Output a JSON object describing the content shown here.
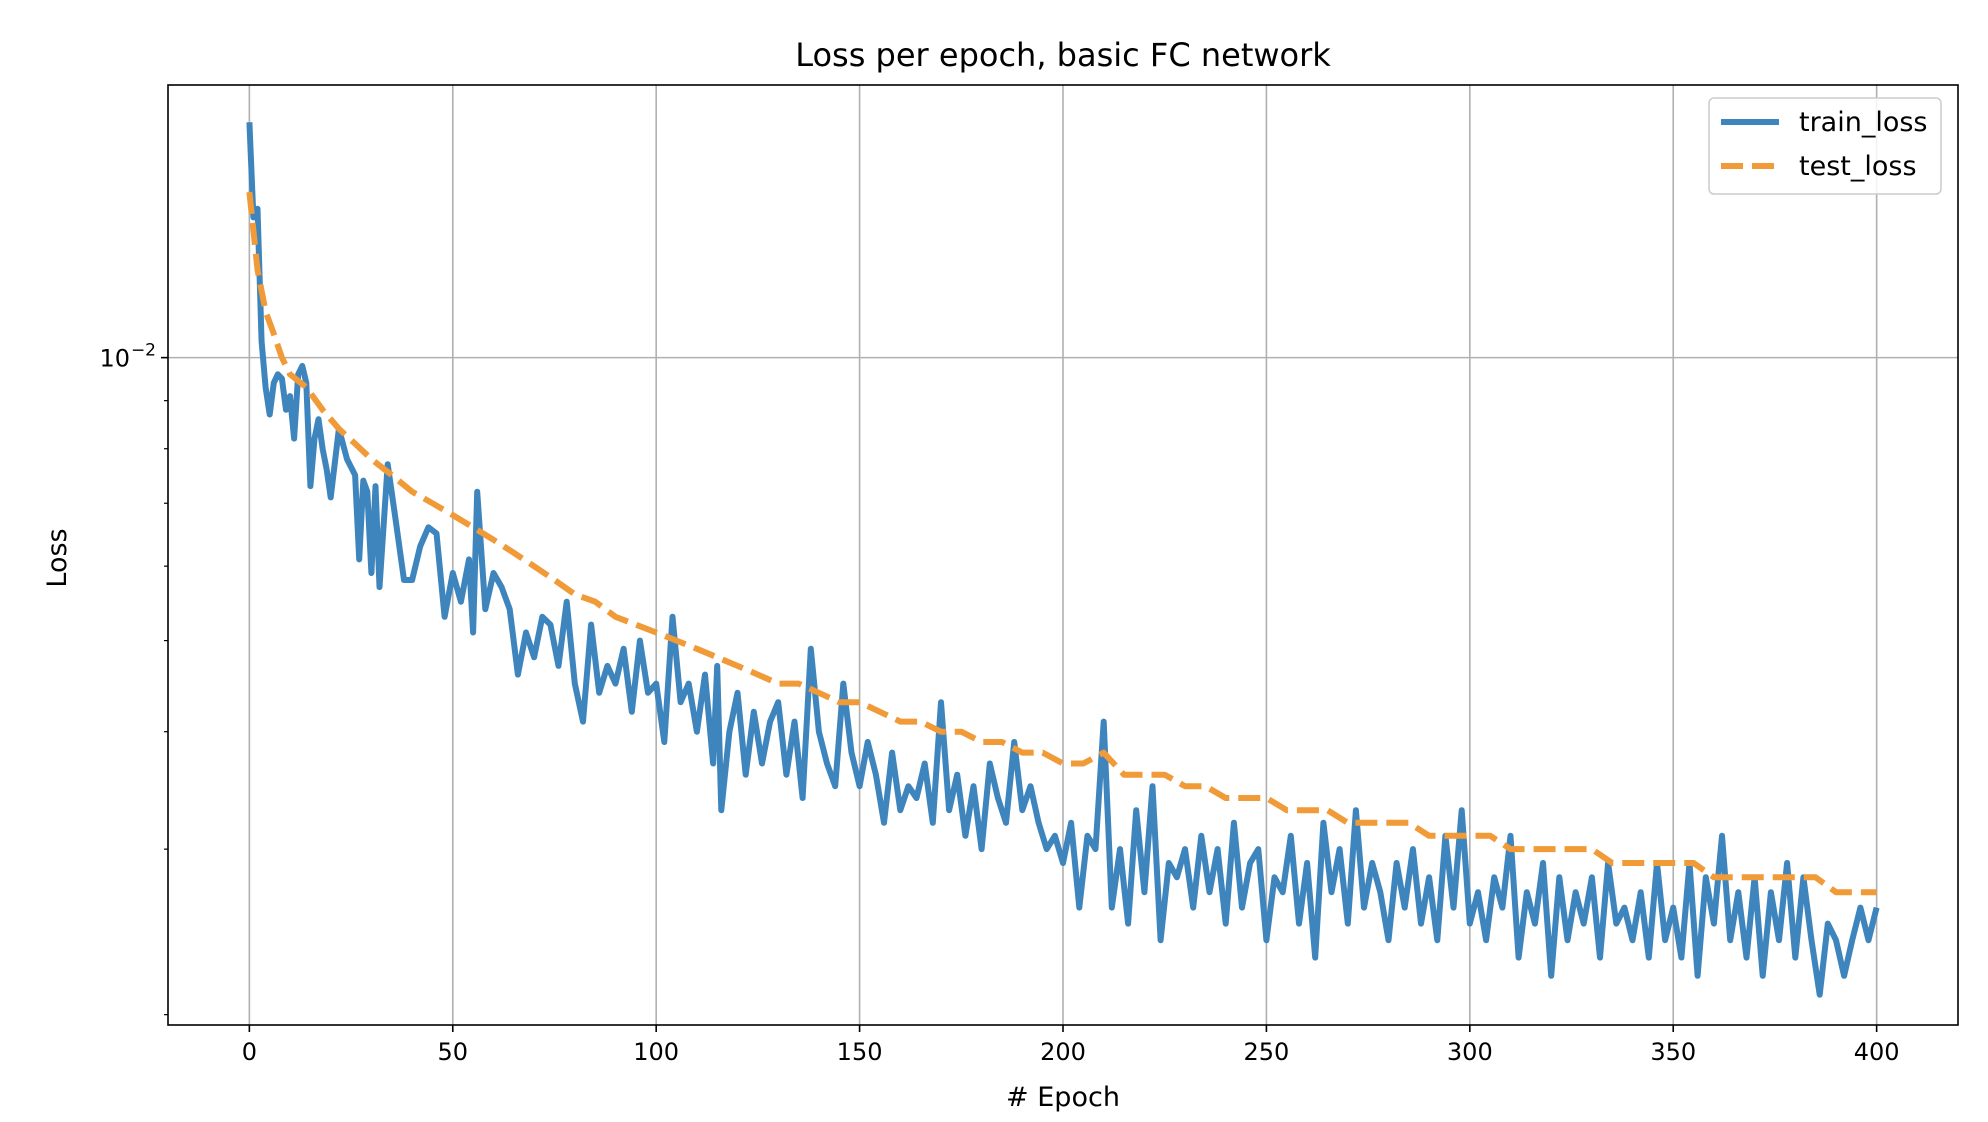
{
  "chart_data": {
    "type": "line",
    "title": "Loss per epoch, basic FC network",
    "xlabel": "# Epoch",
    "ylabel": "Loss",
    "x_scale": "linear",
    "y_scale": "log",
    "xlim": [
      -20,
      420
    ],
    "ylim": [
      0.00195,
      0.0195
    ],
    "xticks": [
      0,
      50,
      100,
      150,
      200,
      250,
      300,
      350,
      400
    ],
    "xtick_labels": [
      "0",
      "50",
      "100",
      "150",
      "200",
      "250",
      "300",
      "350",
      "400"
    ],
    "yticks": [
      0.01
    ],
    "ytick_labels": [
      "10",
      "−2"
    ],
    "grid": true,
    "legend_position": "upper right",
    "series": [
      {
        "name": "train_loss",
        "color": "#3f85bd",
        "style": "solid",
        "points": [
          [
            0,
            0.0178
          ],
          [
            1,
            0.0141
          ],
          [
            2,
            0.0144
          ],
          [
            3,
            0.0104
          ],
          [
            4,
            0.0093
          ],
          [
            5,
            0.0087
          ],
          [
            6,
            0.0094
          ],
          [
            7,
            0.0096
          ],
          [
            8,
            0.0095
          ],
          [
            9,
            0.0088
          ],
          [
            10,
            0.0091
          ],
          [
            11,
            0.0082
          ],
          [
            12,
            0.0096
          ],
          [
            13,
            0.0098
          ],
          [
            14,
            0.0094
          ],
          [
            15,
            0.0073
          ],
          [
            16,
            0.0082
          ],
          [
            17,
            0.0086
          ],
          [
            18,
            0.008
          ],
          [
            19,
            0.0076
          ],
          [
            20,
            0.0071
          ],
          [
            22,
            0.0084
          ],
          [
            24,
            0.0078
          ],
          [
            26,
            0.0075
          ],
          [
            27,
            0.0061
          ],
          [
            28,
            0.0074
          ],
          [
            29,
            0.0072
          ],
          [
            30,
            0.0059
          ],
          [
            31,
            0.0073
          ],
          [
            32,
            0.0057
          ],
          [
            34,
            0.0077
          ],
          [
            36,
            0.0067
          ],
          [
            38,
            0.0058
          ],
          [
            40,
            0.0058
          ],
          [
            42,
            0.0063
          ],
          [
            44,
            0.0066
          ],
          [
            46,
            0.0065
          ],
          [
            48,
            0.0053
          ],
          [
            50,
            0.0059
          ],
          [
            52,
            0.0055
          ],
          [
            54,
            0.0061
          ],
          [
            55,
            0.0051
          ],
          [
            56,
            0.0072
          ],
          [
            58,
            0.0054
          ],
          [
            60,
            0.0059
          ],
          [
            62,
            0.0057
          ],
          [
            64,
            0.0054
          ],
          [
            66,
            0.0046
          ],
          [
            68,
            0.0051
          ],
          [
            70,
            0.0048
          ],
          [
            72,
            0.0053
          ],
          [
            74,
            0.0052
          ],
          [
            76,
            0.0047
          ],
          [
            78,
            0.0055
          ],
          [
            80,
            0.0045
          ],
          [
            82,
            0.0041
          ],
          [
            84,
            0.0052
          ],
          [
            86,
            0.0044
          ],
          [
            88,
            0.0047
          ],
          [
            90,
            0.0045
          ],
          [
            92,
            0.0049
          ],
          [
            94,
            0.0042
          ],
          [
            96,
            0.005
          ],
          [
            98,
            0.0044
          ],
          [
            100,
            0.0045
          ],
          [
            102,
            0.0039
          ],
          [
            104,
            0.0053
          ],
          [
            106,
            0.0043
          ],
          [
            108,
            0.0045
          ],
          [
            110,
            0.004
          ],
          [
            112,
            0.0046
          ],
          [
            114,
            0.0037
          ],
          [
            115,
            0.0047
          ],
          [
            116,
            0.0033
          ],
          [
            118,
            0.004
          ],
          [
            120,
            0.0044
          ],
          [
            122,
            0.0036
          ],
          [
            124,
            0.0042
          ],
          [
            126,
            0.0037
          ],
          [
            128,
            0.0041
          ],
          [
            130,
            0.0043
          ],
          [
            132,
            0.0036
          ],
          [
            134,
            0.0041
          ],
          [
            136,
            0.0034
          ],
          [
            138,
            0.0049
          ],
          [
            140,
            0.004
          ],
          [
            142,
            0.0037
          ],
          [
            144,
            0.0035
          ],
          [
            146,
            0.0045
          ],
          [
            148,
            0.0038
          ],
          [
            150,
            0.0035
          ],
          [
            152,
            0.0039
          ],
          [
            154,
            0.0036
          ],
          [
            156,
            0.0032
          ],
          [
            158,
            0.0038
          ],
          [
            160,
            0.0033
          ],
          [
            162,
            0.0035
          ],
          [
            164,
            0.0034
          ],
          [
            166,
            0.0037
          ],
          [
            168,
            0.0032
          ],
          [
            170,
            0.0043
          ],
          [
            172,
            0.0033
          ],
          [
            174,
            0.0036
          ],
          [
            176,
            0.0031
          ],
          [
            178,
            0.0035
          ],
          [
            180,
            0.003
          ],
          [
            182,
            0.0037
          ],
          [
            184,
            0.0034
          ],
          [
            186,
            0.0032
          ],
          [
            188,
            0.0039
          ],
          [
            190,
            0.0033
          ],
          [
            192,
            0.0035
          ],
          [
            194,
            0.0032
          ],
          [
            196,
            0.003
          ],
          [
            198,
            0.0031
          ],
          [
            200,
            0.0029
          ],
          [
            202,
            0.0032
          ],
          [
            204,
            0.0026
          ],
          [
            206,
            0.0031
          ],
          [
            208,
            0.003
          ],
          [
            210,
            0.0041
          ],
          [
            212,
            0.0026
          ],
          [
            214,
            0.003
          ],
          [
            216,
            0.0025
          ],
          [
            218,
            0.0033
          ],
          [
            220,
            0.0027
          ],
          [
            222,
            0.0035
          ],
          [
            224,
            0.0024
          ],
          [
            226,
            0.0029
          ],
          [
            228,
            0.0028
          ],
          [
            230,
            0.003
          ],
          [
            232,
            0.0026
          ],
          [
            234,
            0.0031
          ],
          [
            236,
            0.0027
          ],
          [
            238,
            0.003
          ],
          [
            240,
            0.0025
          ],
          [
            242,
            0.0032
          ],
          [
            244,
            0.0026
          ],
          [
            246,
            0.0029
          ],
          [
            248,
            0.003
          ],
          [
            250,
            0.0024
          ],
          [
            252,
            0.0028
          ],
          [
            254,
            0.0027
          ],
          [
            256,
            0.0031
          ],
          [
            258,
            0.0025
          ],
          [
            260,
            0.0029
          ],
          [
            262,
            0.0023
          ],
          [
            264,
            0.0032
          ],
          [
            266,
            0.0027
          ],
          [
            268,
            0.003
          ],
          [
            270,
            0.0025
          ],
          [
            272,
            0.0033
          ],
          [
            274,
            0.0026
          ],
          [
            276,
            0.0029
          ],
          [
            278,
            0.0027
          ],
          [
            280,
            0.0024
          ],
          [
            282,
            0.0029
          ],
          [
            284,
            0.0026
          ],
          [
            286,
            0.003
          ],
          [
            288,
            0.0025
          ],
          [
            290,
            0.0028
          ],
          [
            292,
            0.0024
          ],
          [
            294,
            0.0031
          ],
          [
            296,
            0.0026
          ],
          [
            298,
            0.0033
          ],
          [
            300,
            0.0025
          ],
          [
            302,
            0.0027
          ],
          [
            304,
            0.0024
          ],
          [
            306,
            0.0028
          ],
          [
            308,
            0.0026
          ],
          [
            310,
            0.0031
          ],
          [
            312,
            0.0023
          ],
          [
            314,
            0.0027
          ],
          [
            316,
            0.0025
          ],
          [
            318,
            0.0029
          ],
          [
            320,
            0.0022
          ],
          [
            322,
            0.0028
          ],
          [
            324,
            0.0024
          ],
          [
            326,
            0.0027
          ],
          [
            328,
            0.0025
          ],
          [
            330,
            0.0028
          ],
          [
            332,
            0.0023
          ],
          [
            334,
            0.0029
          ],
          [
            336,
            0.0025
          ],
          [
            338,
            0.0026
          ],
          [
            340,
            0.0024
          ],
          [
            342,
            0.0027
          ],
          [
            344,
            0.0023
          ],
          [
            346,
            0.0029
          ],
          [
            348,
            0.0024
          ],
          [
            350,
            0.0026
          ],
          [
            352,
            0.0023
          ],
          [
            354,
            0.0029
          ],
          [
            356,
            0.0022
          ],
          [
            358,
            0.0028
          ],
          [
            360,
            0.0025
          ],
          [
            362,
            0.0031
          ],
          [
            364,
            0.0024
          ],
          [
            366,
            0.0027
          ],
          [
            368,
            0.0023
          ],
          [
            370,
            0.0028
          ],
          [
            372,
            0.0022
          ],
          [
            374,
            0.0027
          ],
          [
            376,
            0.0024
          ],
          [
            378,
            0.0029
          ],
          [
            380,
            0.0023
          ],
          [
            382,
            0.0028
          ],
          [
            384,
            0.0024
          ],
          [
            386,
            0.0021
          ],
          [
            388,
            0.0025
          ],
          [
            390,
            0.0024
          ],
          [
            392,
            0.0022
          ],
          [
            394,
            0.0024
          ],
          [
            396,
            0.0026
          ],
          [
            398,
            0.0024
          ],
          [
            400,
            0.0026
          ]
        ]
      },
      {
        "name": "test_loss",
        "color": "#f19a38",
        "style": "dashed",
        "points": [
          [
            0,
            0.015
          ],
          [
            2,
            0.0124
          ],
          [
            4,
            0.0112
          ],
          [
            6,
            0.0106
          ],
          [
            8,
            0.01
          ],
          [
            10,
            0.0096
          ],
          [
            14,
            0.0093
          ],
          [
            18,
            0.0088
          ],
          [
            22,
            0.0084
          ],
          [
            26,
            0.0081
          ],
          [
            30,
            0.0078
          ],
          [
            35,
            0.0075
          ],
          [
            40,
            0.0072
          ],
          [
            45,
            0.007
          ],
          [
            50,
            0.0068
          ],
          [
            55,
            0.0066
          ],
          [
            60,
            0.0064
          ],
          [
            65,
            0.0062
          ],
          [
            70,
            0.006
          ],
          [
            75,
            0.0058
          ],
          [
            80,
            0.0056
          ],
          [
            85,
            0.0055
          ],
          [
            90,
            0.0053
          ],
          [
            95,
            0.0052
          ],
          [
            100,
            0.0051
          ],
          [
            105,
            0.005
          ],
          [
            110,
            0.0049
          ],
          [
            115,
            0.0048
          ],
          [
            120,
            0.0047
          ],
          [
            125,
            0.0046
          ],
          [
            130,
            0.0045
          ],
          [
            135,
            0.0045
          ],
          [
            140,
            0.0044
          ],
          [
            145,
            0.0043
          ],
          [
            150,
            0.0043
          ],
          [
            155,
            0.0042
          ],
          [
            160,
            0.0041
          ],
          [
            165,
            0.0041
          ],
          [
            170,
            0.004
          ],
          [
            175,
            0.004
          ],
          [
            180,
            0.0039
          ],
          [
            185,
            0.0039
          ],
          [
            190,
            0.0038
          ],
          [
            195,
            0.0038
          ],
          [
            200,
            0.0037
          ],
          [
            205,
            0.0037
          ],
          [
            210,
            0.0038
          ],
          [
            215,
            0.0036
          ],
          [
            220,
            0.0036
          ],
          [
            225,
            0.0036
          ],
          [
            230,
            0.0035
          ],
          [
            235,
            0.0035
          ],
          [
            240,
            0.0034
          ],
          [
            245,
            0.0034
          ],
          [
            250,
            0.0034
          ],
          [
            255,
            0.0033
          ],
          [
            260,
            0.0033
          ],
          [
            265,
            0.0033
          ],
          [
            270,
            0.0032
          ],
          [
            275,
            0.0032
          ],
          [
            280,
            0.0032
          ],
          [
            285,
            0.0032
          ],
          [
            290,
            0.0031
          ],
          [
            295,
            0.0031
          ],
          [
            300,
            0.0031
          ],
          [
            305,
            0.0031
          ],
          [
            310,
            0.003
          ],
          [
            315,
            0.003
          ],
          [
            320,
            0.003
          ],
          [
            325,
            0.003
          ],
          [
            330,
            0.003
          ],
          [
            335,
            0.0029
          ],
          [
            340,
            0.0029
          ],
          [
            345,
            0.0029
          ],
          [
            350,
            0.0029
          ],
          [
            355,
            0.0029
          ],
          [
            360,
            0.0028
          ],
          [
            365,
            0.0028
          ],
          [
            370,
            0.0028
          ],
          [
            375,
            0.0028
          ],
          [
            380,
            0.0028
          ],
          [
            385,
            0.0028
          ],
          [
            390,
            0.0027
          ],
          [
            395,
            0.0027
          ],
          [
            400,
            0.0027
          ]
        ]
      }
    ]
  }
}
